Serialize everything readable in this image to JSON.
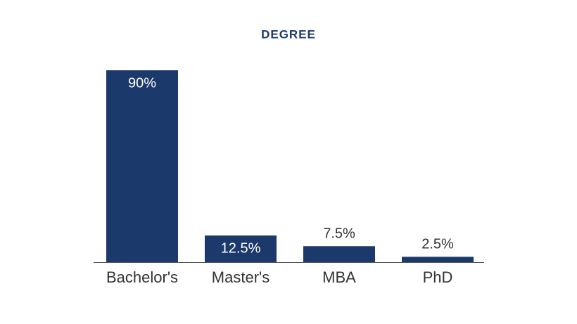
{
  "chart_data": {
    "type": "bar",
    "title": "DEGREE",
    "categories": [
      "Bachelor's",
      "Master's",
      "MBA",
      "PhD"
    ],
    "values": [
      90,
      12.5,
      7.5,
      2.5
    ],
    "value_labels": [
      "90%",
      "12.5%",
      "7.5%",
      "2.5%"
    ],
    "color": "#1b3a6b"
  }
}
